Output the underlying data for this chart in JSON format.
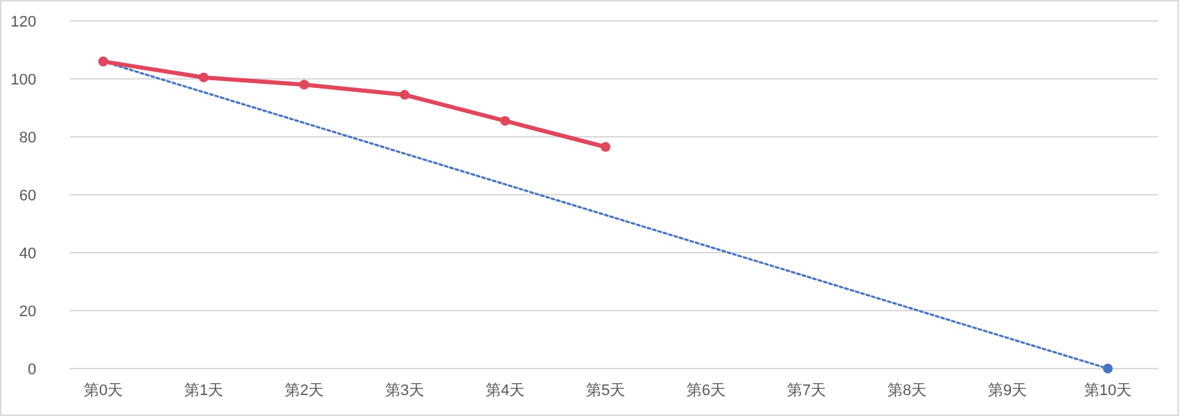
{
  "chart_data": {
    "type": "line",
    "categories": [
      "第0天",
      "第1天",
      "第2天",
      "第3天",
      "第4天",
      "第5天",
      "第6天",
      "第7天",
      "第8天",
      "第9天",
      "第10天"
    ],
    "series": [
      {
        "color": "#4472c4",
        "line_style": "dotted",
        "marker": "circle",
        "values": [
          106,
          null,
          null,
          null,
          null,
          null,
          null,
          null,
          null,
          null,
          0
        ]
      },
      {
        "color": "#e0475c",
        "line_style": "solid",
        "marker": "circle",
        "values": [
          106,
          100.5,
          98,
          94.5,
          85.5,
          76.5,
          null,
          null,
          null,
          null,
          null
        ]
      }
    ],
    "ylim": [
      0,
      120
    ],
    "yticks": [
      0,
      20,
      40,
      60,
      80,
      100,
      120
    ],
    "grid": "y"
  }
}
